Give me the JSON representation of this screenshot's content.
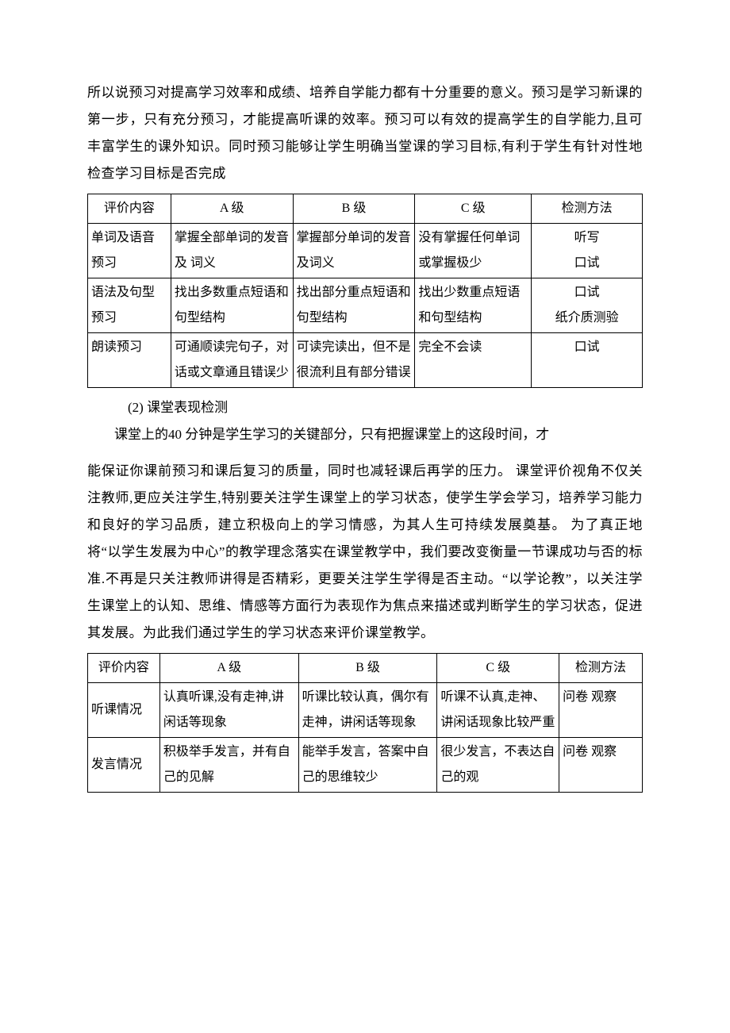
{
  "para1": "所以说预习对提高学习效率和成绩、培养自学能力都有十分重要的意义。预习是学习新课的第一步，只有充分预习，才能提高听课的效率。预习可以有效的提高学生的自学能力,且可丰富学生的课外知识。同时预习能够让学生明确当堂课的学习目标,有利于学生有针对性地检查学习目标是否完成",
  "table1": {
    "headers": [
      "评价内容",
      "A 级",
      "B 级",
      "C 级",
      "检测方法"
    ],
    "rows": [
      [
        "单词及语音预习",
        "掌握全部单词的发音及  词义",
        "掌握部分单词的发音及词义",
        "没有掌握任何单词或掌握极少",
        "听写\n口试"
      ],
      [
        "语法及句型预习",
        "找出多数重点短语和句型结构",
        "找出部分重点短语和句型结构",
        "找出少数重点短语和句型结构",
        "口试\n纸介质测验"
      ],
      [
        "朗读预习",
        "可通顺读完句子，对话或文章通且错误少",
        "可读完读出，但不是很流利且有部分错误",
        "完全不会读",
        "口试"
      ]
    ],
    "col_widths": [
      "15%",
      "22%",
      "22%",
      "21%",
      "20%"
    ]
  },
  "subhead": "(2) 课堂表现检测",
  "para2_line1": "课堂上的40 分钟是学生学习的关键部分，只有把握课堂上的这段时间，才",
  "para2_rest": "能保证你课前预习和课后复习的质量，同时也减轻课后再学的压力。 课堂评价视角不仅关注教师,更应关注学生,特别要关注学生课堂上的学习状态，使学生学会学习，培养学习能力和良好的学习品质，建立积极向上的学习情感，为其人生可持续发展奠基。 为了真正地将“以学生发展为中心”的教学理念落实在课堂教学中，我们要改变衡量一节课成功与否的标准.不再是只关注教师讲得是否精彩，更要关注学生学得是否主动。“以学论教”，以关注学生课堂上的认知、思维、情感等方面行为表现作为焦点来描述或判断学生的学习状态，促进其发展。为此我们通过学生的学习状态来评价课堂教学。",
  "table2": {
    "headers": [
      "评价内容",
      "A 级",
      "B 级",
      "C 级",
      "检测方法"
    ],
    "rows": [
      [
        "听课情况",
        "认真听课,没有走神,讲闲话等现象",
        "听课比较认真，偶尔有走神，讲闲话等现象",
        "听课不认真,走神、讲闲话现象比较严重",
        "问卷  观察"
      ],
      [
        "发言情况",
        "积极举手发言，并有自己的见解",
        "能举手发言，答案中自己的思维较少",
        "很少发言，不表达自己的观",
        "问卷  观察"
      ]
    ],
    "col_widths": [
      "13%",
      "25%",
      "25%",
      "22%",
      "15%"
    ]
  }
}
